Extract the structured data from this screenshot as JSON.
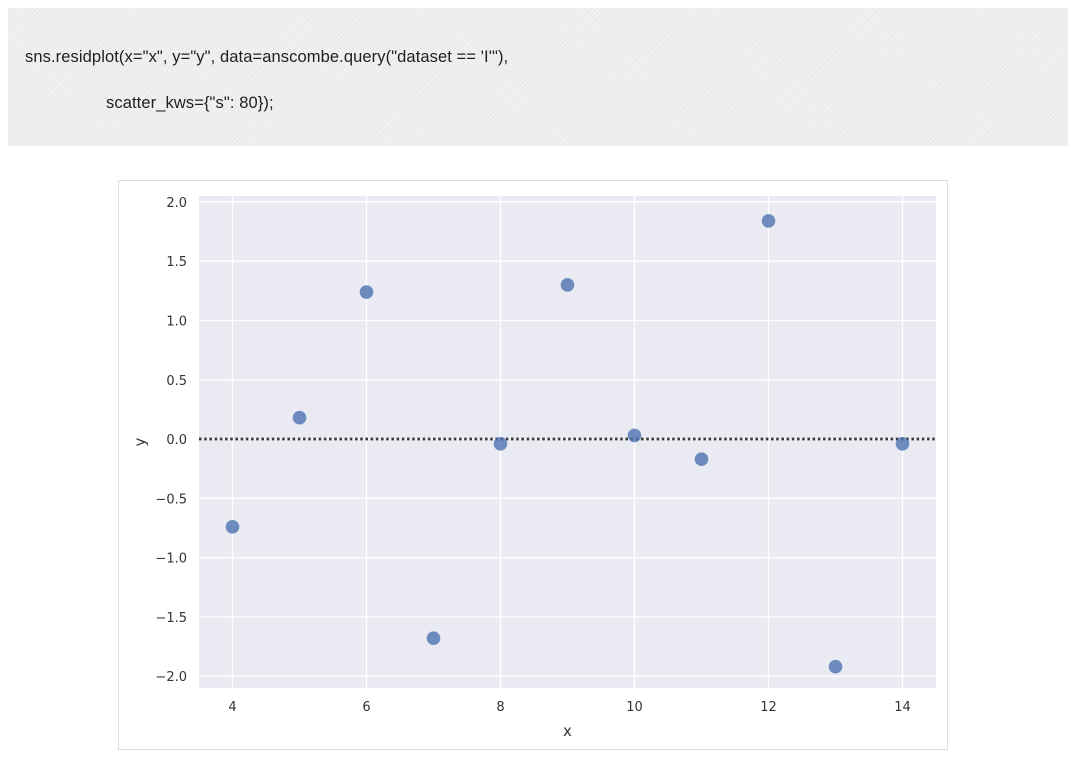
{
  "code": {
    "line1": "sns.residplot(x=\"x\", y=\"y\", data=anscombe.query(\"dataset == 'I'\"),",
    "line2": "scatter_kws={\"s\": 80});"
  },
  "colors": {
    "plot_background": "#eaeaf2",
    "grid": "#ffffff",
    "points": "#4c72b0",
    "zero_line": "#3a3a3a",
    "tick_text": "#333333"
  },
  "chart_data": {
    "type": "scatter",
    "title": "",
    "xlabel": "x",
    "ylabel": "y",
    "xlim": [
      3.5,
      14.5
    ],
    "ylim": [
      -2.1,
      2.05
    ],
    "xticks": [
      4,
      6,
      8,
      10,
      12,
      14
    ],
    "xtick_labels": [
      "4",
      "6",
      "8",
      "10",
      "12",
      "14"
    ],
    "yticks": [
      2.0,
      1.5,
      1.0,
      0.5,
      0.0,
      -0.5,
      -1.0,
      -1.5,
      -2.0
    ],
    "ytick_labels": [
      "2.0",
      "1.5",
      "1.0",
      "0.5",
      "0.0",
      "−0.5",
      "−1.0",
      "−1.5",
      "−2.0"
    ],
    "grid": true,
    "reference_line": {
      "y": 0,
      "style": "dotted"
    },
    "x": [
      4,
      5,
      6,
      7,
      8,
      9,
      10,
      11,
      12,
      13,
      14
    ],
    "y": [
      -0.74,
      0.18,
      1.24,
      -1.68,
      -0.04,
      1.3,
      0.03,
      -0.17,
      1.84,
      -1.92,
      -0.04
    ]
  }
}
